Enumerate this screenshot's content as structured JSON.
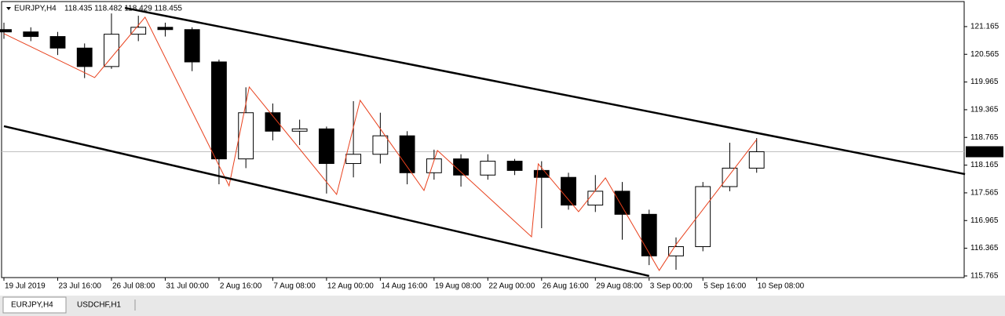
{
  "header": {
    "symbol": "EURJPY,H4",
    "quote": "118.435 118.482 118.429 118.455"
  },
  "tabs": [
    "EURJPY,H4",
    "USDCHF,H1"
  ],
  "chart_data": {
    "type": "candlestick",
    "bull_color": "#ffffff",
    "bear_color": "#000000",
    "zigzag_color": "#e8401c",
    "channel_color": "#000000",
    "xlim": [
      -1.17,
      285.75
    ],
    "ylim": [
      115.73,
      121.69
    ],
    "xticks": [
      {
        "value": 0,
        "label": "19 Jul 2019"
      },
      {
        "value": 16,
        "label": "23 Jul 16:00"
      },
      {
        "value": 32,
        "label": "26 Jul 08:00"
      },
      {
        "value": 48,
        "label": "31 Jul 00:00"
      },
      {
        "value": 64,
        "label": "2 Aug 16:00"
      },
      {
        "value": 80,
        "label": "7 Aug 08:00"
      },
      {
        "value": 96,
        "label": "12 Aug 00:00"
      },
      {
        "value": 112,
        "label": "14 Aug 16:00"
      },
      {
        "value": 128,
        "label": "19 Aug 08:00"
      },
      {
        "value": 144,
        "label": "22 Aug 00:00"
      },
      {
        "value": 160,
        "label": "26 Aug 16:00"
      },
      {
        "value": 176,
        "label": "29 Aug 08:00"
      },
      {
        "value": 192,
        "label": "3 Sep 00:00"
      },
      {
        "value": 208,
        "label": "5 Sep 16:00"
      },
      {
        "value": 224,
        "label": "10 Sep 08:00"
      }
    ],
    "yticks": [
      121.165,
      120.565,
      119.965,
      119.365,
      118.765,
      118.165,
      117.565,
      116.965,
      116.365,
      115.765
    ],
    "last_price": 118.455,
    "x": [
      0,
      8,
      16,
      24,
      32,
      40,
      48,
      56,
      64,
      72,
      80,
      88,
      96,
      104,
      112,
      120,
      128,
      136,
      144,
      152,
      160,
      168,
      176,
      184,
      192,
      200,
      208,
      216,
      224
    ],
    "open": [
      121.1,
      121.05,
      120.95,
      120.7,
      120.3,
      121.0,
      121.15,
      121.1,
      120.4,
      118.3,
      119.3,
      118.9,
      118.95,
      118.2,
      118.4,
      118.8,
      118.0,
      118.3,
      117.95,
      118.25,
      118.05,
      117.9,
      117.3,
      117.6,
      117.1,
      116.2,
      116.4,
      117.7,
      118.1
    ],
    "high": [
      121.25,
      121.15,
      121.05,
      120.8,
      121.45,
      121.4,
      121.25,
      121.15,
      120.45,
      119.85,
      119.5,
      119.15,
      119.0,
      119.55,
      119.3,
      118.9,
      118.5,
      118.4,
      118.4,
      118.3,
      118.25,
      118.0,
      117.95,
      117.8,
      117.2,
      116.6,
      117.8,
      118.65,
      118.75
    ],
    "low": [
      120.9,
      120.85,
      120.55,
      120.05,
      120.25,
      120.85,
      120.95,
      120.2,
      117.75,
      118.1,
      118.7,
      118.6,
      117.55,
      117.9,
      118.2,
      117.75,
      117.85,
      117.7,
      117.85,
      117.95,
      116.8,
      117.2,
      117.15,
      116.55,
      116.0,
      115.9,
      116.3,
      117.6,
      118.0
    ],
    "close": [
      121.05,
      120.95,
      120.7,
      120.3,
      121.0,
      121.15,
      121.1,
      120.4,
      118.3,
      119.3,
      118.9,
      118.95,
      118.2,
      118.4,
      118.8,
      118.0,
      118.3,
      117.95,
      118.25,
      118.05,
      117.9,
      117.3,
      117.6,
      117.1,
      116.2,
      116.4,
      117.7,
      118.1,
      118.455
    ],
    "zigzag": {
      "x": [
        0,
        27,
        42,
        67,
        73,
        99,
        106,
        125,
        129,
        157,
        159,
        171,
        179,
        195,
        200,
        224
      ],
      "y": [
        121.012,
        120.061,
        121.369,
        117.718,
        119.857,
        117.531,
        119.569,
        117.616,
        118.482,
        116.614,
        118.193,
        117.158,
        117.888,
        115.884,
        116.444,
        118.72
      ]
    },
    "channels": [
      {
        "x": [
          36,
          286
        ],
        "y": [
          121.57,
          117.97
        ]
      },
      {
        "x": [
          0,
          192
        ],
        "y": [
          119.008,
          115.765
        ]
      }
    ]
  }
}
